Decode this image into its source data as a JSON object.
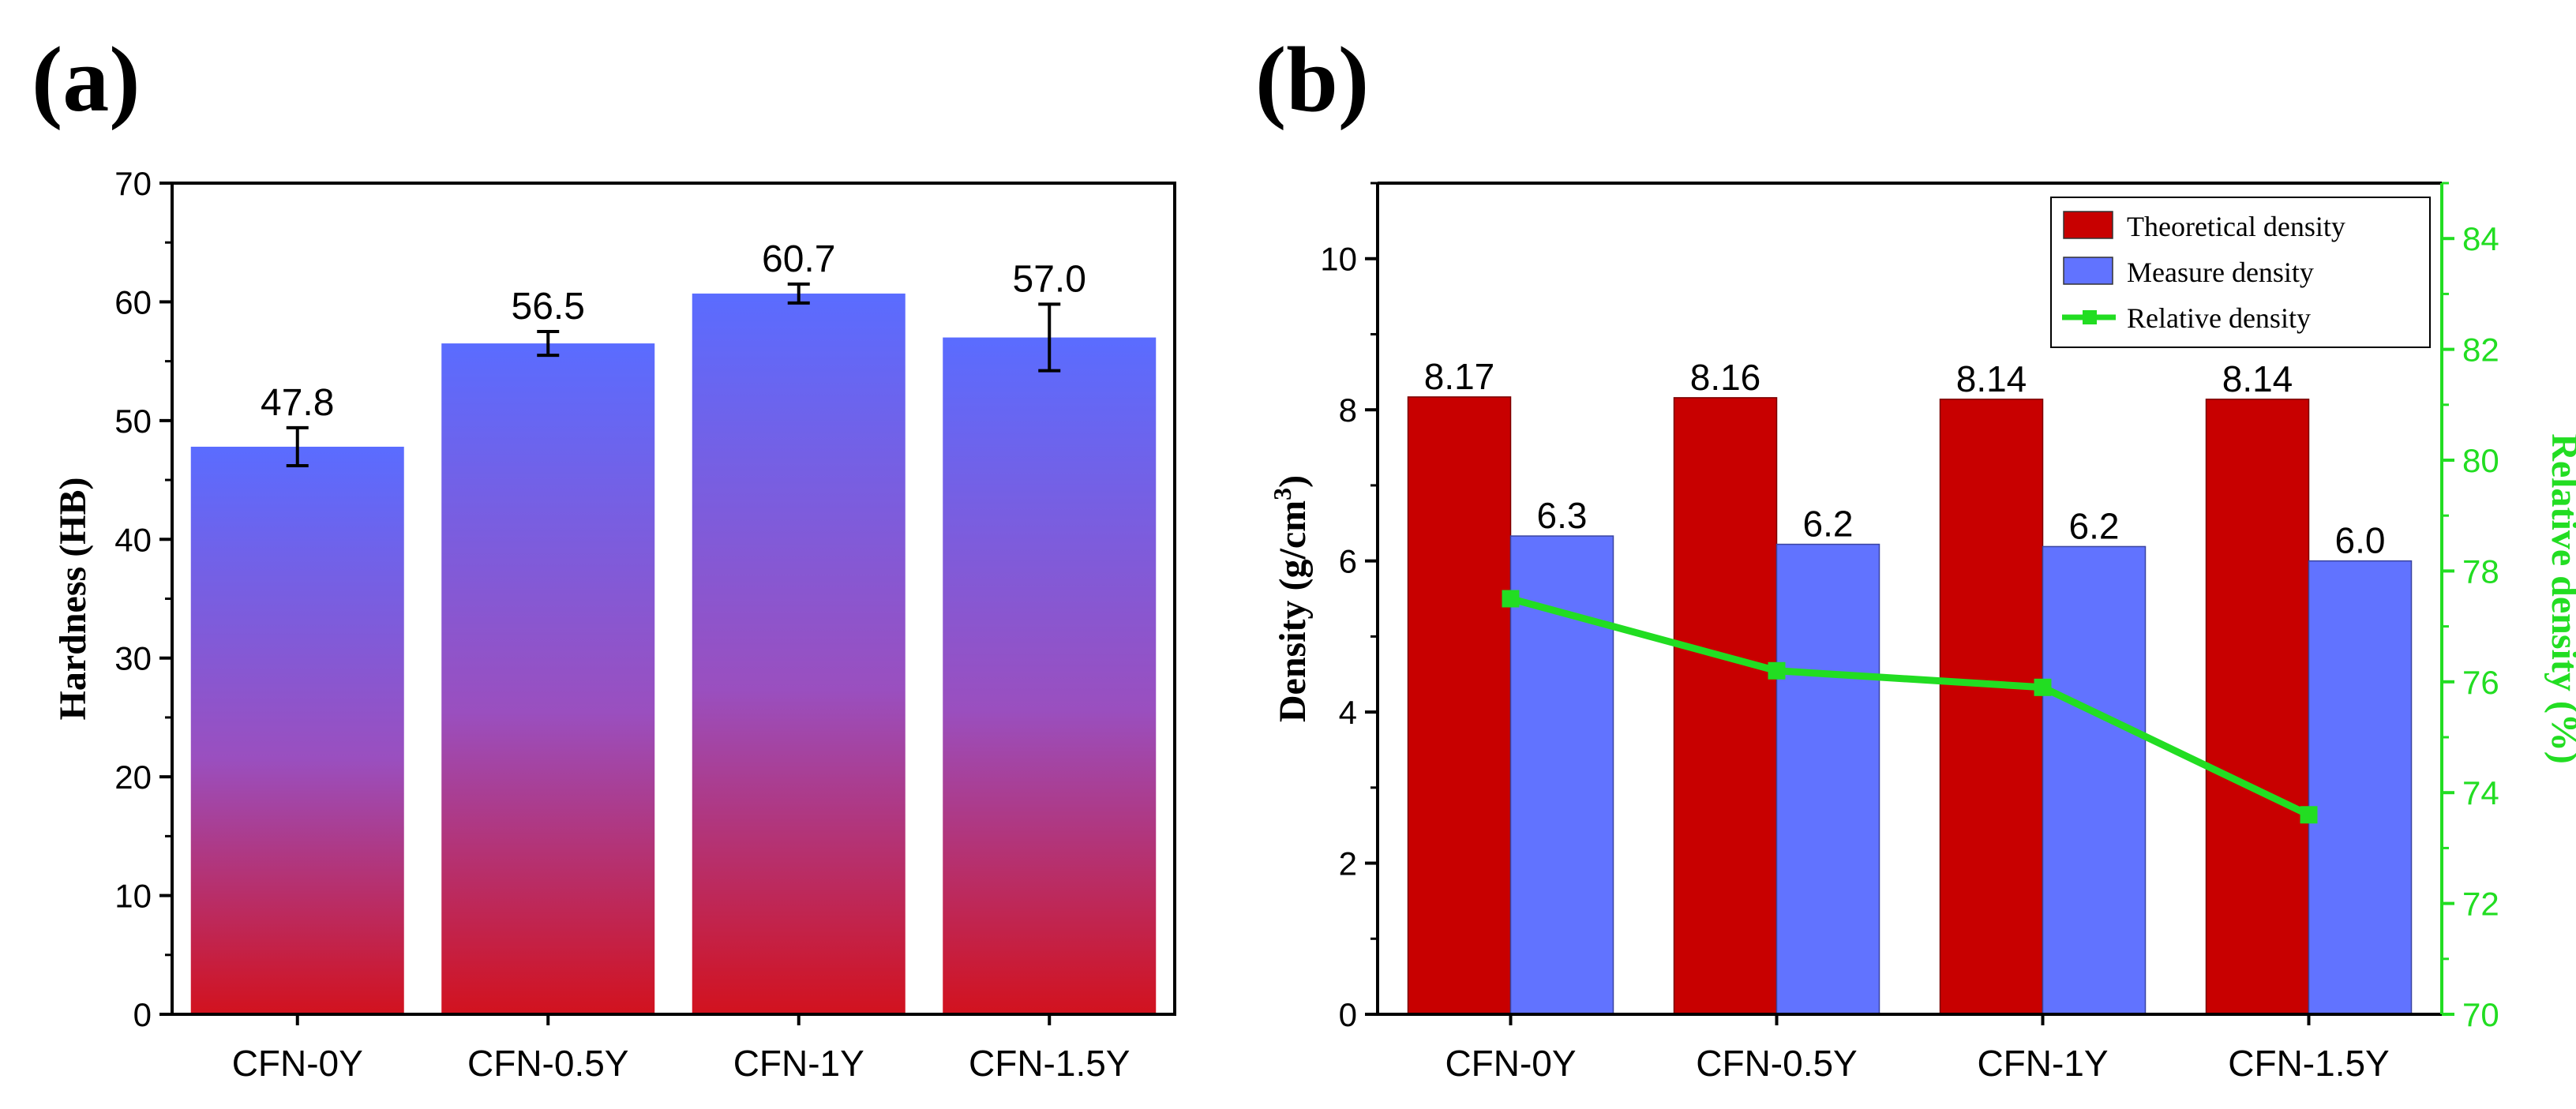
{
  "chart_data": [
    {
      "panel_label": "(a)",
      "type": "bar",
      "ylabel": "Hardness (HB)",
      "xlabel": "",
      "ylim": [
        0,
        70
      ],
      "yticks": [
        0,
        10,
        20,
        30,
        40,
        50,
        60,
        70
      ],
      "categories": [
        "CFN-0Y",
        "CFN-0.5Y",
        "CFN-1Y",
        "CFN-1.5Y"
      ],
      "values": [
        47.8,
        56.5,
        60.7,
        57.0
      ],
      "value_labels": [
        "47.8",
        "56.5",
        "60.7",
        "57.0"
      ],
      "errors": [
        1.6,
        1.0,
        0.8,
        2.8
      ],
      "bar_gradient": {
        "top": "#5a6cff",
        "bottom": "#d2121e"
      },
      "colors": {
        "axis": "#000000",
        "error_bar": "#000000"
      }
    },
    {
      "panel_label": "(b)",
      "type": "bar",
      "ylabel": "Density (g/cm³)",
      "ylabel_parts": {
        "main": "Density (g/cm",
        "sup": "3",
        "end": ")"
      },
      "y2label": "Relative density (%)",
      "xlabel": "",
      "ylim": [
        0,
        11
      ],
      "yticks": [
        0,
        2,
        4,
        6,
        8,
        10
      ],
      "y2lim": [
        70,
        85
      ],
      "y2ticks": [
        70,
        72,
        74,
        76,
        78,
        80,
        82,
        84
      ],
      "categories": [
        "CFN-0Y",
        "CFN-0.5Y",
        "CFN-1Y",
        "CFN-1.5Y"
      ],
      "series": [
        {
          "name": "Theoretical density",
          "type": "bar",
          "axis": "left",
          "values": [
            8.17,
            8.16,
            8.14,
            8.14
          ],
          "value_labels": [
            "8.17",
            "8.16",
            "8.14",
            "8.14"
          ],
          "color": "#c80000"
        },
        {
          "name": "Measure density",
          "type": "bar",
          "axis": "left",
          "values": [
            6.33,
            6.22,
            6.19,
            6.0
          ],
          "value_labels": [
            "6.3",
            "6.2",
            "6.2",
            "6.0"
          ],
          "color": "#6173ff"
        },
        {
          "name": "Relative density",
          "type": "line",
          "axis": "right",
          "values": [
            77.5,
            76.2,
            75.9,
            73.6
          ],
          "color": "#22dd22"
        }
      ],
      "legend": {
        "position": "top-right",
        "entries": [
          "Theoretical density",
          "Measure density",
          "Relative density"
        ]
      },
      "colors": {
        "axis": "#000000",
        "right_axis": "#22dd22"
      }
    }
  ]
}
